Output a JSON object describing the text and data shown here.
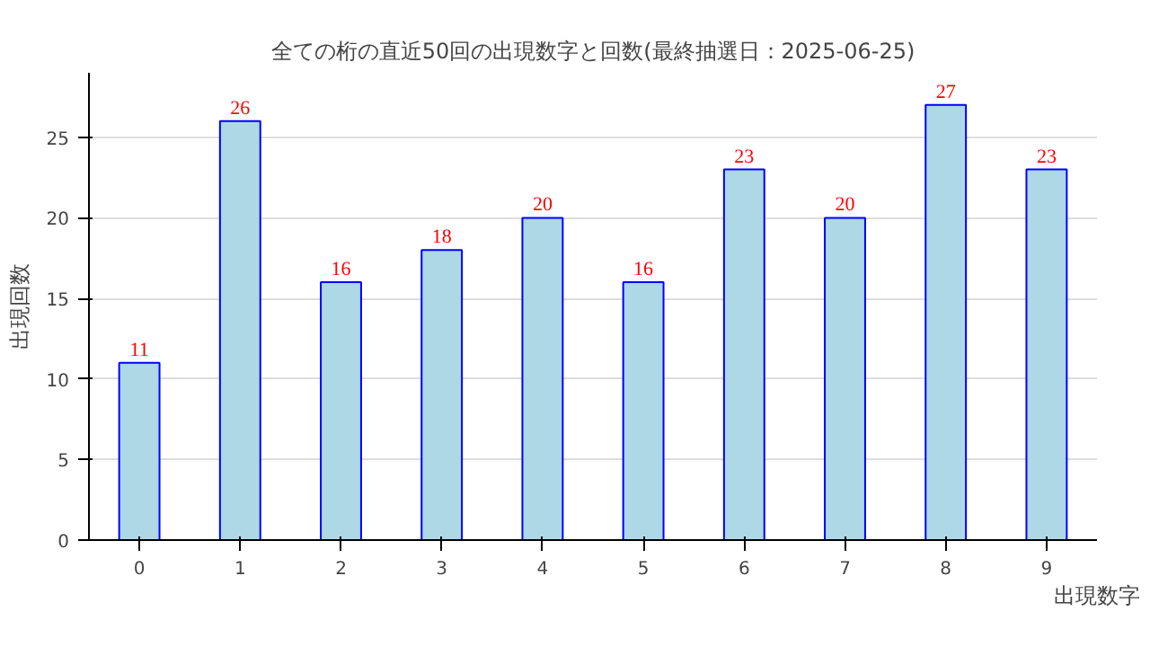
{
  "chart_data": {
    "type": "bar",
    "title": "全ての桁の直近50回の出現数字と回数(最終抽選日：2025-06-25)",
    "xlabel": "出現数字",
    "ylabel": "出現回数",
    "categories": [
      "0",
      "1",
      "2",
      "3",
      "4",
      "5",
      "6",
      "7",
      "8",
      "9"
    ],
    "series": [
      {
        "color": "#add8e6",
        "values": [
          11,
          26,
          16,
          18,
          20,
          16,
          23,
          20,
          27,
          23
        ]
      }
    ],
    "ylim": [
      0,
      29
    ],
    "yticks": [
      0,
      5,
      10,
      15,
      20,
      25
    ],
    "grid": "y",
    "data_labels": true
  }
}
